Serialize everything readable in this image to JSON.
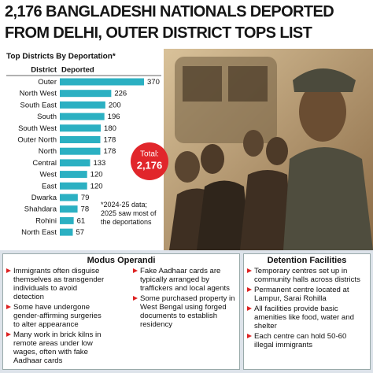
{
  "headline": [
    "2,176 BANGLADESHI NATIONALS DEPORTED",
    "FROM DELHI, OUTER DISTRICT TOPS LIST"
  ],
  "chart_data": {
    "type": "bar",
    "orientation": "horizontal",
    "title": "Top Districts By Deportation*",
    "category_header": "District",
    "value_header": "Deported",
    "color": "#2bb0c2",
    "categories": [
      "Outer",
      "North West",
      "South East",
      "South",
      "South West",
      "Outer North",
      "North",
      "Central",
      "West",
      "East",
      "Dwarka",
      "Shahdara",
      "Rohini",
      "North East"
    ],
    "values": [
      370,
      226,
      200,
      196,
      180,
      178,
      178,
      133,
      120,
      120,
      79,
      78,
      61,
      57
    ]
  },
  "total": {
    "label": "Total:",
    "value": "2,176"
  },
  "note": "*2024-25 data; 2025 saw most of the deportations",
  "modus_operandi": {
    "title": "Modus Operandi",
    "items": [
      "Immigrants often disguise themselves as transgender individuals to avoid detection",
      "Some have undergone gender-affirming surgeries to alter appearance",
      "Many work in brick kilns in remote areas under low wages, often with fake Aadhaar cards",
      "Fake Aadhaar cards are typically arranged by traffickers and local agents",
      "Some purchased property in West Bengal using forged documents to establish residency"
    ]
  },
  "detention_facilities": {
    "title": "Detention Facilities",
    "items": [
      "Temporary centres set up in community halls across districts",
      "Permanent centre located at Lampur, Sarai Rohilla",
      "All facilities provide basic amenities like food, water and shelter",
      "Each centre can hold 50-60 illegal immigrants"
    ]
  }
}
